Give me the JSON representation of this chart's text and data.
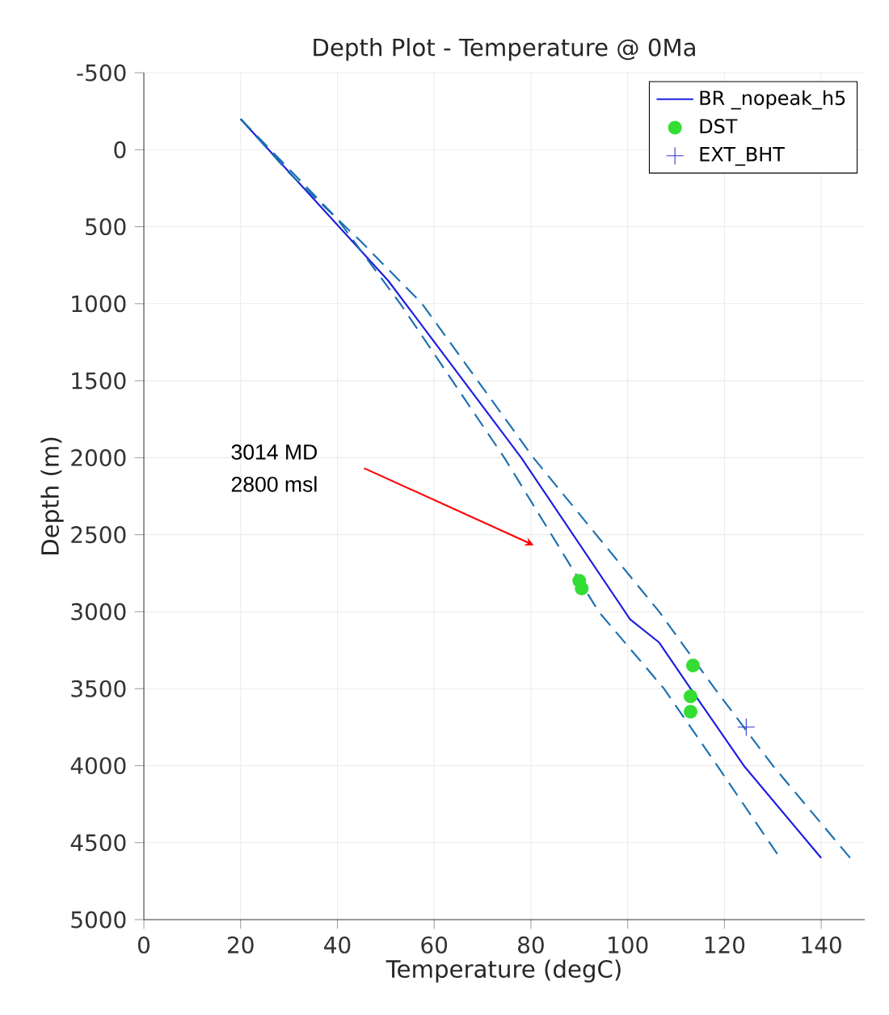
{
  "chart_data": {
    "type": "line",
    "title": "Depth Plot - Temperature @ 0Ma",
    "xlabel": "Temperature (degC)",
    "ylabel": "Depth (m)",
    "series": [
      {
        "name": "BR _nopeak_h5",
        "color": "#1c1ce0",
        "line_style": "solid",
        "marker": "none",
        "x": [
          20,
          50.5,
          78,
          100.5,
          106.5,
          113,
          124,
          140
        ],
        "values": [
          -200,
          850,
          2000,
          3050,
          3200,
          3500,
          4000,
          4600
        ]
      },
      {
        "color": "#1a6fb0",
        "line_style": "dashed",
        "marker": "none",
        "x": [
          20,
          30,
          45,
          57.5,
          80.5,
          106.5,
          118,
          130,
          146
        ],
        "values": [
          -200,
          150,
          600,
          1000,
          2000,
          3000,
          3500,
          4000,
          4600
        ]
      },
      {
        "color": "#1a6fb0",
        "line_style": "dashed",
        "marker": "none",
        "x": [
          20,
          40,
          53,
          74.5,
          94,
          107.5,
          118.5,
          131.5
        ],
        "values": [
          -200,
          450,
          1000,
          2000,
          3000,
          3500,
          4000,
          4600
        ]
      },
      {
        "name": "DST",
        "type": "scatter",
        "color": "#33dd33",
        "marker": "circle",
        "x": [
          90,
          90.5,
          113.5,
          113,
          113
        ],
        "values": [
          2800,
          2850,
          3350,
          3550,
          3650
        ]
      },
      {
        "name": "EXT_BHT",
        "type": "scatter",
        "color": "#3333cc",
        "marker": "cross",
        "x": [
          124.5
        ],
        "values": [
          3750
        ]
      }
    ],
    "xlim": [
      0,
      149
    ],
    "ylim": [
      5000,
      -500
    ],
    "xticks": [
      0,
      20,
      40,
      60,
      80,
      100,
      120,
      140
    ],
    "yticks": [
      -500,
      0,
      500,
      1000,
      1500,
      2000,
      2500,
      3000,
      3500,
      4000,
      4500,
      5000
    ],
    "grid": true,
    "legend": "top right",
    "annotations": [
      "3014 MD",
      "2800 msl"
    ]
  }
}
